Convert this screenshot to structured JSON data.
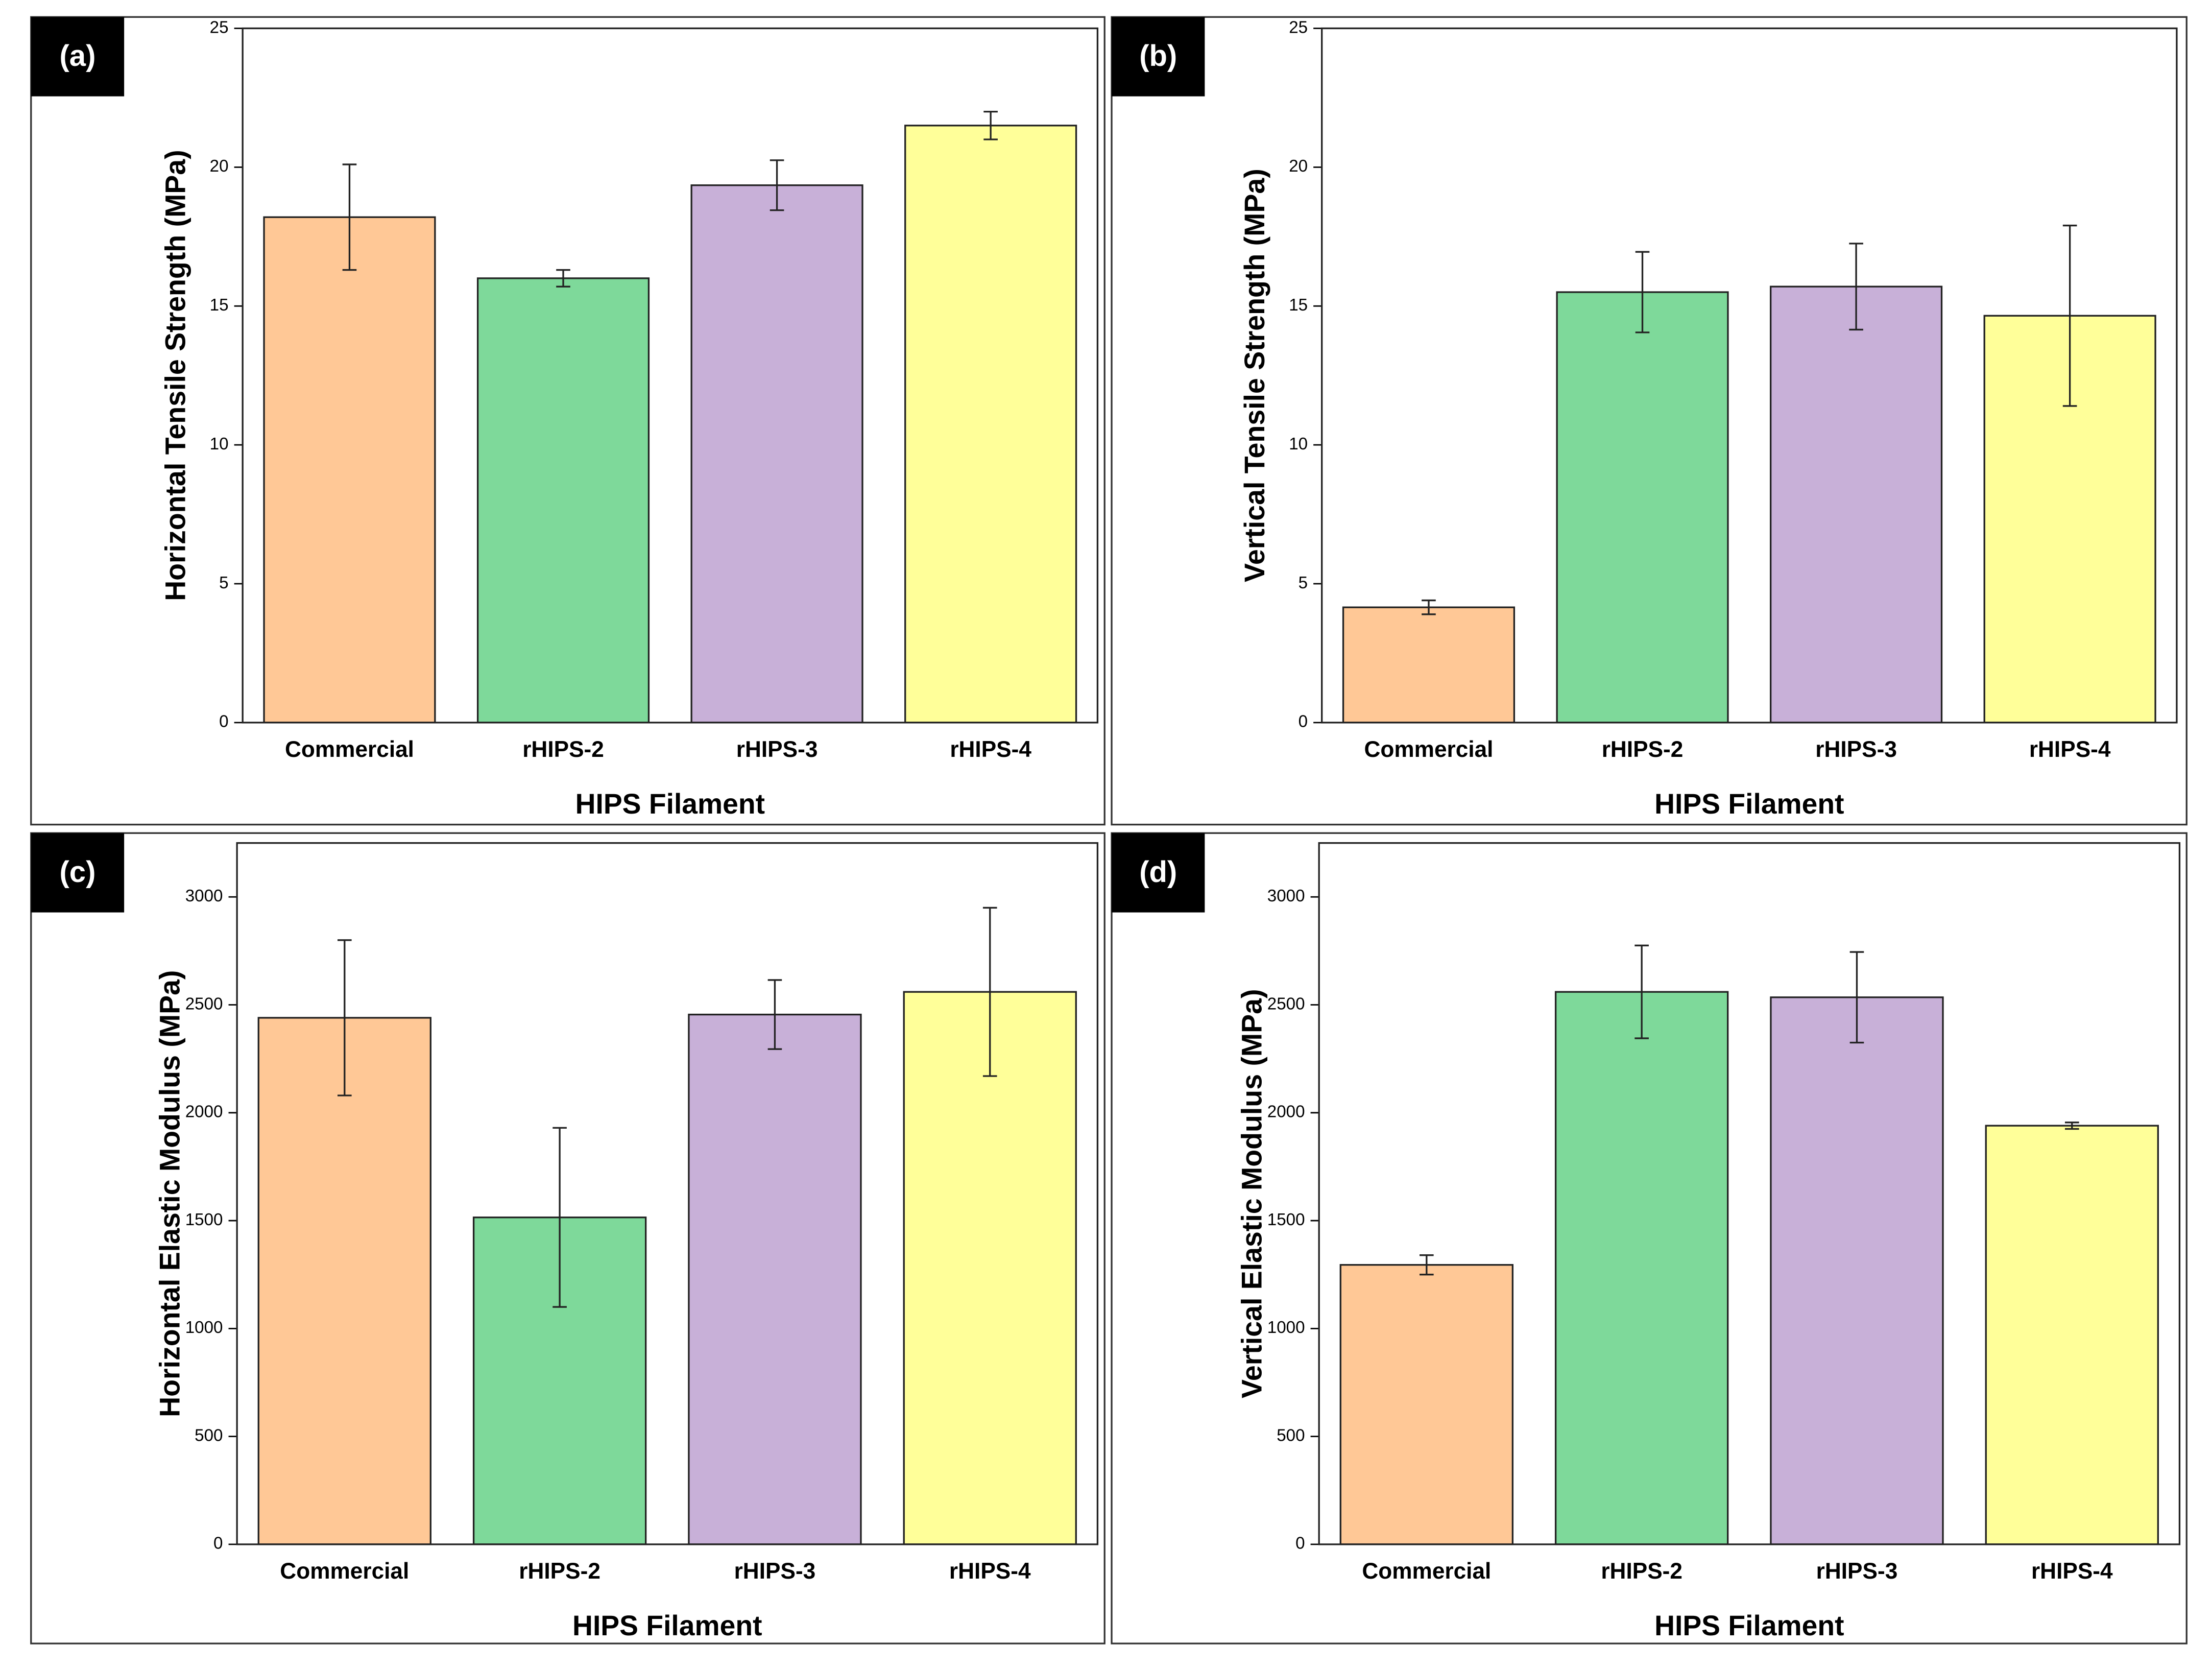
{
  "chart_data": [
    {
      "type": "bar",
      "panel_label": "(a)",
      "x_label": "HIPS Filament",
      "y_label": "Horizontal Tensile Strength (MPa)",
      "categories": [
        "Commercial",
        "rHIPS-2",
        "rHIPS-3",
        "rHIPS-4"
      ],
      "values": [
        18.2,
        16.0,
        19.35,
        21.5
      ],
      "errors": [
        1.9,
        0.3,
        0.9,
        0.5
      ],
      "colors": [
        "#ffc896",
        "#7ed99a",
        "#c8b0d8",
        "#ffff99"
      ],
      "ylim": [
        0,
        25
      ],
      "yticks": [
        0,
        5,
        10,
        15,
        20,
        25
      ]
    },
    {
      "type": "bar",
      "panel_label": "(b)",
      "x_label": "HIPS Filament",
      "y_label": "Vertical Tensile Strength (MPa)",
      "categories": [
        "Commercial",
        "rHIPS-2",
        "rHIPS-3",
        "rHIPS-4"
      ],
      "values": [
        4.15,
        15.5,
        15.7,
        14.65
      ],
      "errors": [
        0.25,
        1.45,
        1.55,
        3.25
      ],
      "colors": [
        "#ffc896",
        "#7ed99a",
        "#c8b0d8",
        "#ffff99"
      ],
      "ylim": [
        0,
        25
      ],
      "yticks": [
        0,
        5,
        10,
        15,
        20,
        25
      ]
    },
    {
      "type": "bar",
      "panel_label": "(c)",
      "x_label": "HIPS Filament",
      "y_label": "Horizontal Elastic Modulus (MPa)",
      "categories": [
        "Commercial",
        "rHIPS-2",
        "rHIPS-3",
        "rHIPS-4"
      ],
      "values": [
        2440,
        1515,
        2455,
        2560
      ],
      "errors": [
        360,
        415,
        160,
        390
      ],
      "colors": [
        "#ffc896",
        "#7ed99a",
        "#c8b0d8",
        "#ffff99"
      ],
      "ylim": [
        0,
        3250
      ],
      "yticks": [
        0,
        500,
        1000,
        1500,
        2000,
        2500,
        3000
      ]
    },
    {
      "type": "bar",
      "panel_label": "(d)",
      "x_label": "HIPS Filament",
      "y_label": "Vertical Elastic Modulus (MPa)",
      "categories": [
        "Commercial",
        "rHIPS-2",
        "rHIPS-3",
        "rHIPS-4"
      ],
      "values": [
        1295,
        2560,
        2535,
        1940
      ],
      "errors": [
        45,
        215,
        210,
        15
      ],
      "colors": [
        "#ffc896",
        "#7ed99a",
        "#c8b0d8",
        "#ffff99"
      ],
      "ylim": [
        0,
        3250
      ],
      "yticks": [
        0,
        500,
        1000,
        1500,
        2000,
        2500,
        3000
      ]
    }
  ]
}
